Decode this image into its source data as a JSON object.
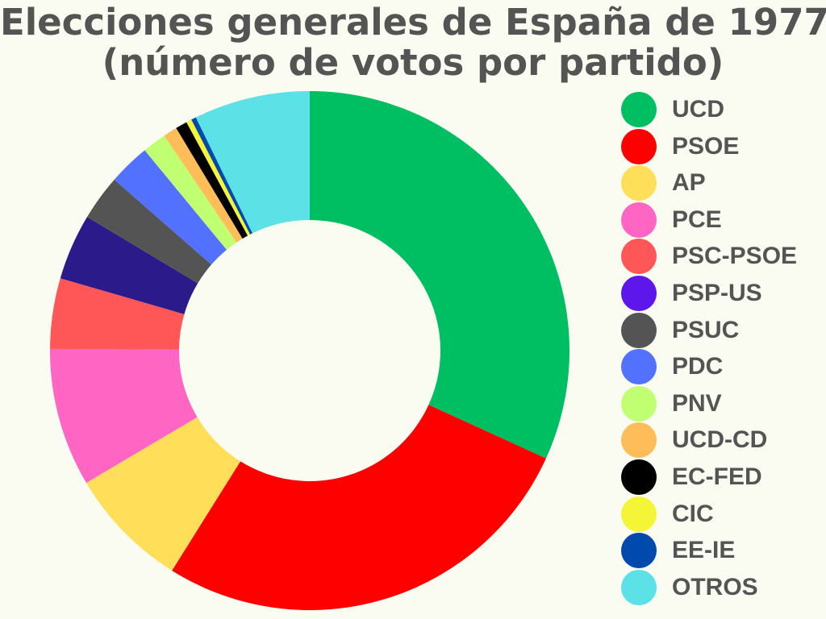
{
  "title": {
    "line1": "Elecciones generales de España de 1977",
    "line2": "(número de votos por partido)"
  },
  "chart_data": {
    "type": "pie",
    "variant": "donut",
    "title": "Elecciones generales de España de 1977 (número de votos por partido)",
    "legend_position": "right",
    "categories": [
      "UCD",
      "PSOE",
      "AP",
      "PCE",
      "PSC-PSOE",
      "PSP-US",
      "PSUC",
      "PDC",
      "PNV",
      "UCD-CD",
      "EC-FED",
      "CIC",
      "EE-IE",
      "OTROS"
    ],
    "values": [
      6310391,
      5371866,
      1504771,
      1709890,
      870362,
      816582,
      561132,
      514647,
      296193,
      172791,
      143954,
      67017,
      61417,
      1433000
    ],
    "colors": [
      "#00bf63",
      "#ff0000",
      "#ffde59",
      "#ff66c4",
      "#ff5757",
      "#5e17eb",
      "#545454",
      "#5271ff",
      "#c1ff72",
      "#ffbd59",
      "#000000",
      "#f5f538",
      "#004aad",
      "#5ce1e6"
    ],
    "slice_colors": [
      "#00bf63",
      "#ff0000",
      "#ffde59",
      "#ff66c4",
      "#ff5757",
      "#2a1a8a",
      "#545454",
      "#5271ff",
      "#c1ff72",
      "#ffbd59",
      "#000000",
      "#f5f538",
      "#004aad",
      "#5ce1e6"
    ]
  }
}
